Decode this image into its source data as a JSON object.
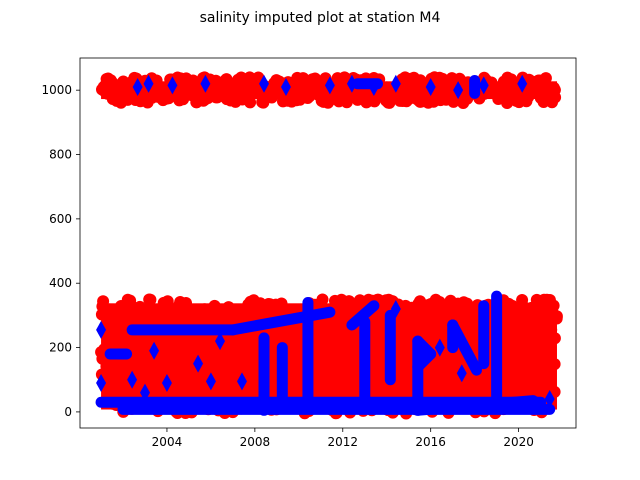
{
  "chart_data": {
    "type": "scatter",
    "title": "salinity imputed plot at station M4",
    "xlabel": "",
    "ylabel": "",
    "x_type": "date",
    "xlim": [
      "2000-01-17",
      "2022-08-12"
    ],
    "ylim": [
      -50,
      1100
    ],
    "x_ticks": [
      {
        "date": "2004-01-01",
        "label": "2004"
      },
      {
        "date": "2008-01-01",
        "label": "2008"
      },
      {
        "date": "2012-01-01",
        "label": "2012"
      },
      {
        "date": "2016-01-01",
        "label": "2016"
      },
      {
        "date": "2020-01-01",
        "label": "2020"
      }
    ],
    "y_ticks": [
      0,
      200,
      400,
      600,
      800,
      1000
    ],
    "grid": false,
    "legend": "none",
    "series": [
      {
        "color": "#ff0000",
        "marker": "circle",
        "bands": [
          {
            "x": [
              "2001-01-01",
              "2021-09-30"
            ],
            "y": [
              960,
              1040
            ]
          },
          {
            "x": [
              "2001-01-01",
              "2021-09-30"
            ],
            "y": [
              -5,
              350
            ]
          }
        ]
      },
      {
        "color": "#0000ff",
        "marker": "diamond",
        "points": [
          {
            "x": "2002-09-01",
            "y": 1010
          },
          {
            "x": "2003-03-01",
            "y": 1020
          },
          {
            "x": "2004-04-01",
            "y": 1015
          },
          {
            "x": "2005-10-01",
            "y": 1020
          },
          {
            "x": "2008-06-01",
            "y": 1020
          },
          {
            "x": "2009-06-01",
            "y": 1010
          },
          {
            "x": "2011-06-01",
            "y": 1015
          },
          {
            "x": "2012-06-01",
            "y": 1020
          },
          {
            "x": "2013-06-01",
            "y": 1010
          },
          {
            "x": "2014-06-01",
            "y": 1020
          },
          {
            "x": "2016-01-01",
            "y": 1010
          },
          {
            "x": "2017-04-01",
            "y": 1000
          },
          {
            "x": "2018-06-01",
            "y": 1015
          },
          {
            "x": "2020-03-01",
            "y": 1020
          },
          {
            "x": "2003-06-01",
            "y": 190
          },
          {
            "x": "2005-06-01",
            "y": 150
          },
          {
            "x": "2006-06-01",
            "y": 220
          },
          {
            "x": "2004-01-01",
            "y": 90
          },
          {
            "x": "2006-01-01",
            "y": 95
          },
          {
            "x": "2007-06-01",
            "y": 95
          },
          {
            "x": "2002-06-01",
            "y": 100
          },
          {
            "x": "2003-01-01",
            "y": 60
          },
          {
            "x": "2001-01-01",
            "y": 255
          },
          {
            "x": "2001-01-01",
            "y": 90
          },
          {
            "x": "2014-06-01",
            "y": 320
          },
          {
            "x": "2016-06-01",
            "y": 200
          },
          {
            "x": "2017-06-01",
            "y": 120
          },
          {
            "x": "2021-06-01",
            "y": 40
          }
        ],
        "segments": [
          {
            "from": {
              "x": "2001-01-01",
              "y": 30
            },
            "to": {
              "x": "2021-01-01",
              "y": 30
            }
          },
          {
            "from": {
              "x": "2002-01-01",
              "y": 8
            },
            "to": {
              "x": "2021-06-01",
              "y": 8
            }
          },
          {
            "from": {
              "x": "2001-06-01",
              "y": 180
            },
            "to": {
              "x": "2002-03-01",
              "y": 180
            }
          },
          {
            "from": {
              "x": "2002-06-01",
              "y": 255
            },
            "to": {
              "x": "2007-01-01",
              "y": 255
            }
          },
          {
            "from": {
              "x": "2007-01-01",
              "y": 255
            },
            "to": {
              "x": "2011-06-01",
              "y": 310
            }
          },
          {
            "from": {
              "x": "2008-06-01",
              "y": 230
            },
            "to": {
              "x": "2008-06-01",
              "y": 5
            }
          },
          {
            "from": {
              "x": "2009-04-01",
              "y": 200
            },
            "to": {
              "x": "2009-04-01",
              "y": 20
            }
          },
          {
            "from": {
              "x": "2010-06-01",
              "y": 340
            },
            "to": {
              "x": "2010-06-01",
              "y": 10
            }
          },
          {
            "from": {
              "x": "2013-01-01",
              "y": 280
            },
            "to": {
              "x": "2013-01-01",
              "y": 10
            }
          },
          {
            "from": {
              "x": "2014-03-01",
              "y": 300
            },
            "to": {
              "x": "2014-03-01",
              "y": 100
            }
          },
          {
            "from": {
              "x": "2013-06-01",
              "y": 330
            },
            "to": {
              "x": "2012-06-01",
              "y": 270
            }
          },
          {
            "from": {
              "x": "2015-06-01",
              "y": 220
            },
            "to": {
              "x": "2015-06-01",
              "y": 5
            }
          },
          {
            "from": {
              "x": "2015-06-01",
              "y": 220
            },
            "to": {
              "x": "2016-01-01",
              "y": 180
            }
          },
          {
            "from": {
              "x": "2016-01-01",
              "y": 180
            },
            "to": {
              "x": "2015-06-01",
              "y": 140
            }
          },
          {
            "from": {
              "x": "2017-01-01",
              "y": 270
            },
            "to": {
              "x": "2018-02-01",
              "y": 130
            }
          },
          {
            "from": {
              "x": "2017-01-01",
              "y": 270
            },
            "to": {
              "x": "2017-01-01",
              "y": 200
            }
          },
          {
            "from": {
              "x": "2018-06-01",
              "y": 330
            },
            "to": {
              "x": "2018-06-01",
              "y": 150
            }
          },
          {
            "from": {
              "x": "2019-01-01",
              "y": 360
            },
            "to": {
              "x": "2019-01-01",
              "y": 50
            }
          },
          {
            "from": {
              "x": "2015-06-01",
              "y": 5
            },
            "to": {
              "x": "2020-09-01",
              "y": 35
            }
          },
          {
            "from": {
              "x": "2012-09-01",
              "y": 1020
            },
            "to": {
              "x": "2013-08-01",
              "y": 1020
            }
          },
          {
            "from": {
              "x": "2018-01-01",
              "y": 1030
            },
            "to": {
              "x": "2018-01-01",
              "y": 990
            }
          }
        ]
      }
    ]
  }
}
